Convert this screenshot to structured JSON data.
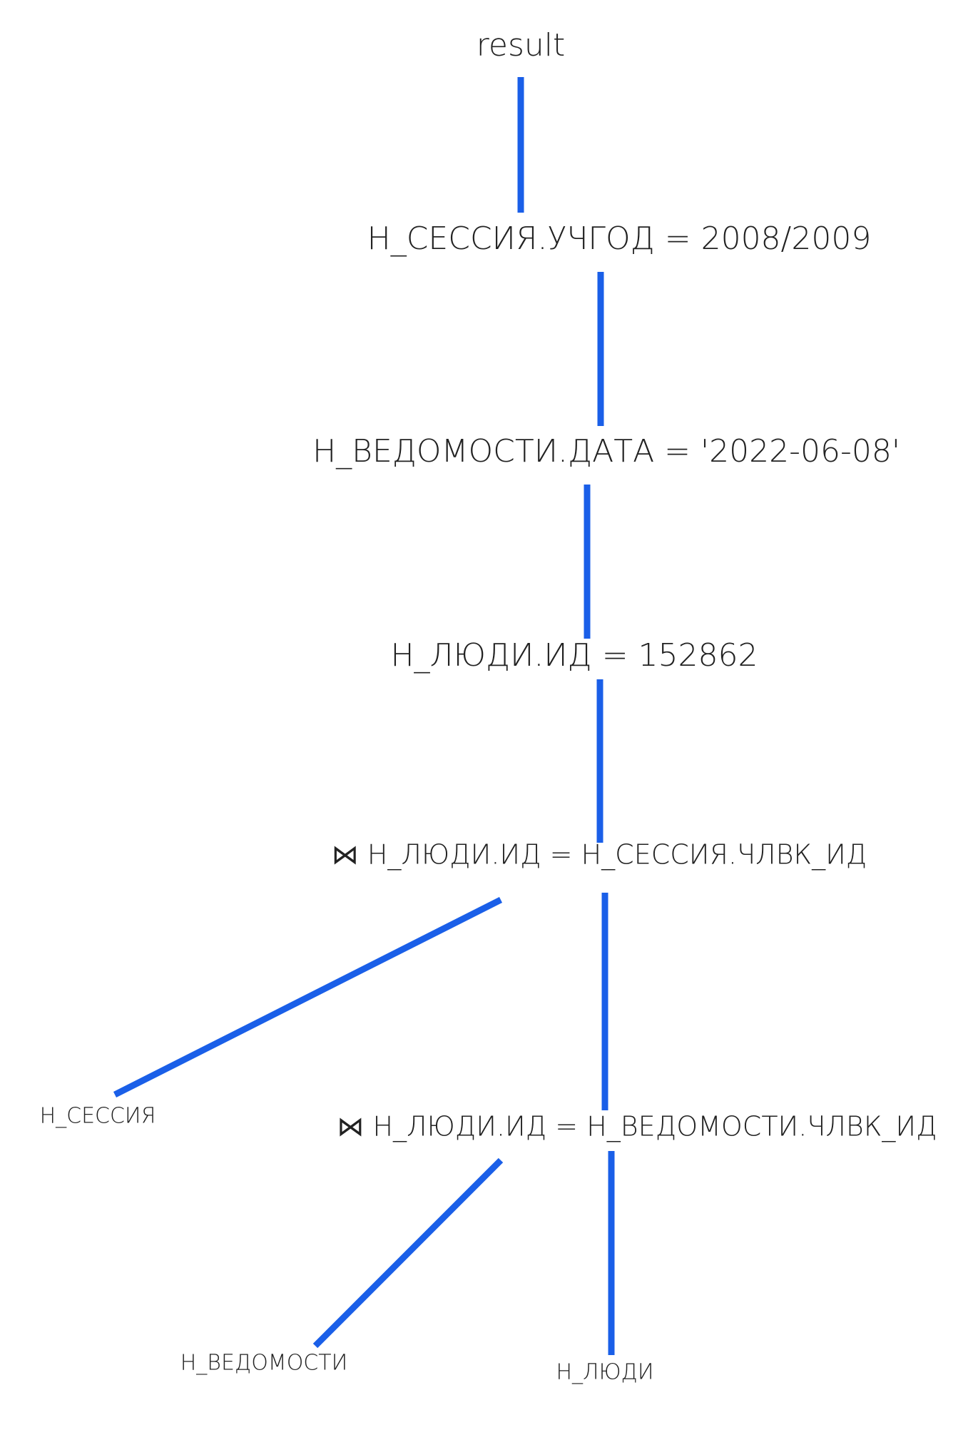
{
  "nodes": [
    {
      "label": "result"
    },
    {
      "label": "Н_СЕССИЯ.УЧГОД = 2008/2009"
    },
    {
      "label": "Н_ВЕДОМОСТИ.ДАТА = '2022-06-08'"
    },
    {
      "label": "Н_ЛЮДИ.ИД = 152862"
    },
    {
      "label": "⋈ Н_ЛЮДИ.ИД = Н_СЕССИЯ.ЧЛВК_ИД"
    },
    {
      "label": "Н_СЕССИЯ"
    },
    {
      "label": "⋈ Н_ЛЮДИ.ИД = Н_ВЕДОМОСТИ.ЧЛВК_ИД"
    },
    {
      "label": "Н_ВЕДОМОСТИ"
    },
    {
      "label": "Н_ЛЮДИ"
    }
  ]
}
